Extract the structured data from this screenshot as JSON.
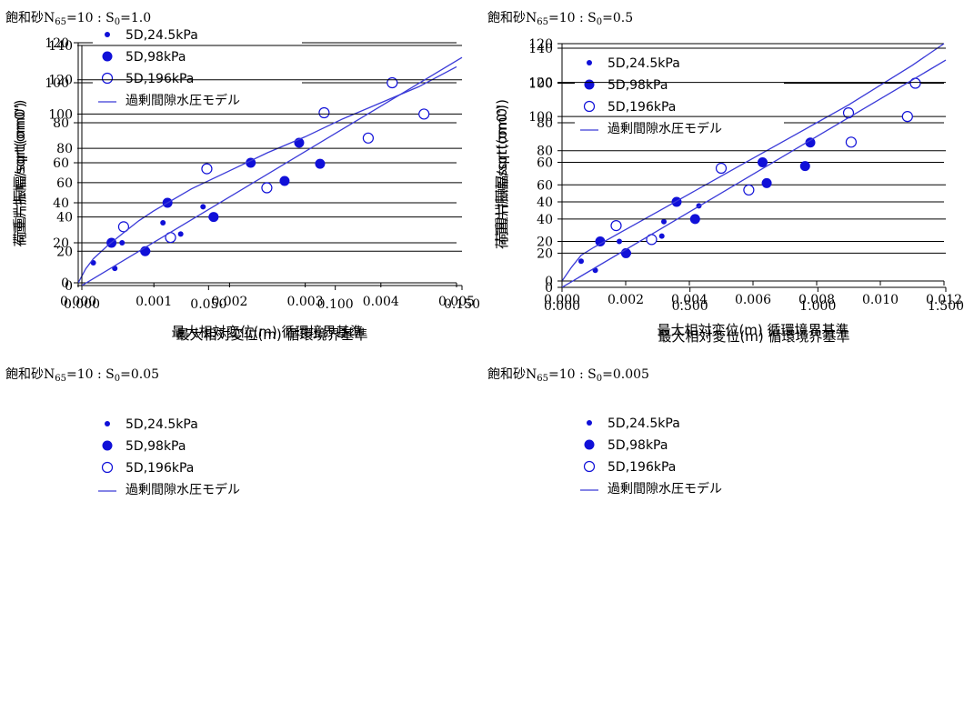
{
  "legend_labels": [
    "5D,24.5kPa",
    "5D,98kPa",
    "5D,196kPa",
    "過剰間隙水圧モデル"
  ],
  "colors": {
    "marker": "#1010d8",
    "line": "#3a3ad8",
    "grid": "#000000",
    "axis": "#000000"
  },
  "chart_data": [
    {
      "type": "scatter",
      "title_prefix": "飽和砂N",
      "title_sub": "65",
      "title_mid": "=10 : S",
      "title_sub2": "0",
      "title_suffix": "=1.0",
      "xlabel": "最大相対変位(m) 循環境界基準",
      "ylabel": "荷重片振幅/sqrt(σm0')",
      "xlim": [
        0,
        0.005
      ],
      "ylim": [
        0,
        120
      ],
      "x_ticks": [
        "0.000",
        "0.001",
        "0.002",
        "0.003",
        "0.004",
        "0.005"
      ],
      "y_ticks": [
        "0",
        "20",
        "40",
        "60",
        "80",
        "100",
        "120"
      ],
      "series": [
        {
          "name": "5D,24.5kPa",
          "marker": "small-dot",
          "x": [
            0.0002,
            0.00058,
            0.00112,
            0.00165
          ],
          "y": [
            10,
            20,
            30,
            38
          ]
        },
        {
          "name": "5D,98kPa",
          "marker": "large-dot",
          "x": [
            0.00044,
            0.00118,
            0.00228,
            0.00292
          ],
          "y": [
            20,
            40,
            60,
            70
          ]
        },
        {
          "name": "5D,196kPa",
          "marker": "open-circle",
          "x": [
            0.0006,
            0.0017,
            0.00325,
            0.00415
          ],
          "y": [
            28,
            57,
            85,
            100
          ]
        },
        {
          "name": "過剰間隙水圧モデル",
          "marker": "line",
          "x": [
            0,
            0.0001,
            0.0002,
            0.0003,
            0.0004,
            0.0006,
            0.0008,
            0.001,
            0.0015,
            0.002,
            0.0025,
            0.003,
            0.0035,
            0.004,
            0.0045,
            0.005
          ],
          "y": [
            0,
            7,
            12,
            15.5,
            19,
            25,
            31,
            36,
            47,
            56,
            65,
            73,
            82,
            90,
            98,
            108
          ]
        }
      ]
    },
    {
      "type": "scatter",
      "title_prefix": "飽和砂N",
      "title_sub": "65",
      "title_mid": "=10 : S",
      "title_sub2": "0",
      "title_suffix": "=0.5",
      "xlabel": "最大相対変位(m) 循環境界基準",
      "ylabel": "荷重片振幅/sqrt(σm0')",
      "xlim": [
        0,
        0.012
      ],
      "ylim": [
        0,
        120
      ],
      "x_ticks": [
        "0.000",
        "0.002",
        "0.004",
        "0.006",
        "0.008",
        "0.010",
        "0.012"
      ],
      "y_ticks": [
        "0",
        "20",
        "40",
        "60",
        "80",
        "100",
        "120"
      ],
      "series": [
        {
          "name": "5D,24.5kPa",
          "marker": "small-dot",
          "x": [
            0.0006,
            0.0018,
            0.0032,
            0.0043
          ],
          "y": [
            10,
            20,
            30,
            38
          ]
        },
        {
          "name": "5D,98kPa",
          "marker": "large-dot",
          "x": [
            0.0012,
            0.0036,
            0.0063,
            0.0078
          ],
          "y": [
            20,
            40,
            60,
            70
          ]
        },
        {
          "name": "5D,196kPa",
          "marker": "open-circle",
          "x": [
            0.0017,
            0.005,
            0.009,
            0.0111
          ],
          "y": [
            28,
            57,
            85,
            100
          ]
        },
        {
          "name": "過剰間隙水圧モデル",
          "marker": "line",
          "x": [
            0,
            0.0003,
            0.0006,
            0.001,
            0.002,
            0.003,
            0.004,
            0.005,
            0.006,
            0.007,
            0.008,
            0.009,
            0.01,
            0.011,
            0.012
          ],
          "y": [
            0,
            7,
            13,
            17,
            26,
            35,
            44,
            53,
            62,
            71,
            80,
            89,
            99,
            109,
            120
          ]
        }
      ]
    },
    {
      "type": "scatter",
      "title_prefix": "飽和砂N",
      "title_sub": "65",
      "title_mid": "=10 : S",
      "title_sub2": "0",
      "title_suffix": "=0.05",
      "xlabel": "最大相対変位(m) 循環境界基準",
      "ylabel": "荷重片振幅/sqrt(σm0')",
      "xlim": [
        0,
        0.15
      ],
      "ylim": [
        0,
        140
      ],
      "x_ticks": [
        "0.000",
        "0.050",
        "0.100",
        "0.150"
      ],
      "y_ticks": [
        "0",
        "20",
        "40",
        "60",
        "80",
        "100",
        "120",
        "140"
      ],
      "series": [
        {
          "name": "5D,24.5kPa",
          "marker": "small-dot",
          "x": [
            0.013,
            0.026,
            0.039,
            0.051
          ],
          "y": [
            10,
            20,
            30,
            40
          ]
        },
        {
          "name": "5D,98kPa",
          "marker": "large-dot",
          "x": [
            0.025,
            0.052,
            0.08,
            0.094
          ],
          "y": [
            20,
            40,
            61,
            71
          ]
        },
        {
          "name": "5D,196kPa",
          "marker": "open-circle",
          "x": [
            0.035,
            0.073,
            0.113,
            0.135
          ],
          "y": [
            28,
            57,
            86,
            100
          ]
        },
        {
          "name": "過剰間隙水圧モデル",
          "marker": "line",
          "x": [
            0,
            0.15
          ],
          "y": [
            0,
            133
          ]
        }
      ]
    },
    {
      "type": "scatter",
      "title_prefix": "飽和砂N",
      "title_sub": "65",
      "title_mid": "=10 : S",
      "title_sub2": "0",
      "title_suffix": "=0.005",
      "xlabel": "最大相対変位(m) 循環境界基準",
      "ylabel": "荷重片振幅/sqrt(σm0')",
      "xlim": [
        0,
        1.5
      ],
      "ylim": [
        0,
        140
      ],
      "x_ticks": [
        "0.000",
        "0.500",
        "1.000",
        "1.500"
      ],
      "y_ticks": [
        "0",
        "20",
        "40",
        "60",
        "80",
        "100",
        "120",
        "140"
      ],
      "series": [
        {
          "name": "5D,24.5kPa",
          "marker": "small-dot",
          "x": [
            0.13,
            0.26,
            0.39,
            0.52
          ],
          "y": [
            10,
            20,
            30,
            40
          ]
        },
        {
          "name": "5D,98kPa",
          "marker": "large-dot",
          "x": [
            0.25,
            0.52,
            0.8,
            0.95
          ],
          "y": [
            20,
            40,
            61,
            71
          ]
        },
        {
          "name": "5D,196kPa",
          "marker": "open-circle",
          "x": [
            0.35,
            0.73,
            1.13,
            1.35
          ],
          "y": [
            28,
            57,
            85,
            100
          ]
        },
        {
          "name": "過剰間隙水圧モデル",
          "marker": "line",
          "x": [
            0,
            1.5
          ],
          "y": [
            0,
            133
          ]
        }
      ]
    }
  ]
}
